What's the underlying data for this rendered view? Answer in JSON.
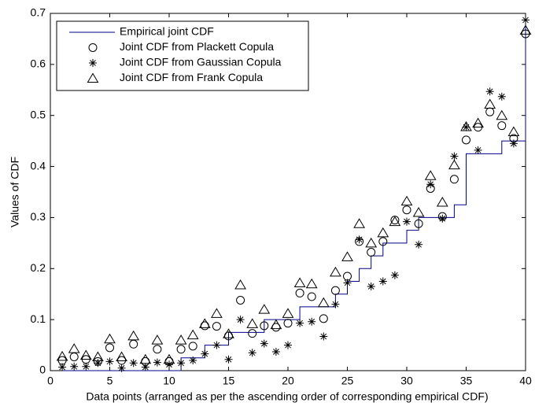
{
  "chart_data": {
    "type": "scatter",
    "xlabel": "Data points (arranged as per the ascending order of corresponding empirical CDF)",
    "ylabel": "Values of CDF",
    "x": [
      1,
      2,
      3,
      4,
      5,
      6,
      7,
      8,
      9,
      10,
      11,
      12,
      13,
      14,
      15,
      16,
      17,
      18,
      19,
      20,
      21,
      22,
      23,
      24,
      25,
      26,
      27,
      28,
      29,
      30,
      31,
      32,
      33,
      34,
      35,
      36,
      37,
      38,
      39,
      40
    ],
    "xlim": [
      0,
      40
    ],
    "xticks": [
      0,
      5,
      10,
      15,
      20,
      25,
      30,
      35,
      40
    ],
    "ylim": [
      0,
      0.7
    ],
    "yticks": [
      0,
      0.1,
      0.2,
      0.3,
      0.4,
      0.5,
      0.6,
      0.7
    ],
    "legend": "upper left",
    "series": [
      {
        "name": "Empirical joint CDF",
        "color": "#00008b",
        "marker": "step",
        "values": [
          0,
          0,
          0,
          0,
          0,
          0,
          0,
          0,
          0,
          0,
          0.025,
          0.025,
          0.05,
          0.05,
          0.075,
          0.075,
          0.075,
          0.1,
          0.1,
          0.1,
          0.125,
          0.125,
          0.125,
          0.15,
          0.175,
          0.2,
          0.225,
          0.25,
          0.25,
          0.275,
          0.3,
          0.3,
          0.3,
          0.325,
          0.425,
          0.425,
          0.425,
          0.45,
          0.45,
          0.675
        ]
      },
      {
        "name": "Joint CDF from Plackett Copula",
        "color": "#000000",
        "marker": "circle",
        "values": [
          0.02,
          0.027,
          0.022,
          0.018,
          0.045,
          0.02,
          0.052,
          0.018,
          0.042,
          0.018,
          0.042,
          0.048,
          0.088,
          0.087,
          0.068,
          0.138,
          0.073,
          0.088,
          0.085,
          0.093,
          0.152,
          0.145,
          0.102,
          0.157,
          0.185,
          0.253,
          0.232,
          0.253,
          0.295,
          0.315,
          0.288,
          0.357,
          0.302,
          0.375,
          0.452,
          0.477,
          0.507,
          0.48,
          0.455,
          0.66
        ]
      },
      {
        "name": "Joint CDF from Gaussian Copula",
        "color": "#000000",
        "marker": "asterisk",
        "values": [
          0.007,
          0.008,
          0.008,
          0.015,
          0.018,
          0.005,
          0.015,
          0.007,
          0.016,
          0.012,
          0.015,
          0.02,
          0.033,
          0.05,
          0.022,
          0.1,
          0.035,
          0.053,
          0.037,
          0.05,
          0.093,
          0.096,
          0.067,
          0.13,
          0.172,
          0.257,
          0.165,
          0.175,
          0.187,
          0.292,
          0.247,
          0.365,
          0.298,
          0.42,
          0.477,
          0.432,
          0.547,
          0.537,
          0.445,
          0.687
        ]
      },
      {
        "name": "Joint CDF from Frank Copula",
        "color": "#000000",
        "marker": "triangle",
        "values": [
          0.028,
          0.043,
          0.03,
          0.027,
          0.062,
          0.027,
          0.068,
          0.022,
          0.06,
          0.022,
          0.06,
          0.07,
          0.092,
          0.112,
          0.072,
          0.168,
          0.092,
          0.12,
          0.09,
          0.112,
          0.172,
          0.17,
          0.133,
          0.193,
          0.223,
          0.288,
          0.25,
          0.27,
          0.292,
          0.332,
          0.31,
          0.382,
          0.33,
          0.403,
          0.478,
          0.485,
          0.522,
          0.5,
          0.468,
          0.667
        ]
      }
    ]
  }
}
